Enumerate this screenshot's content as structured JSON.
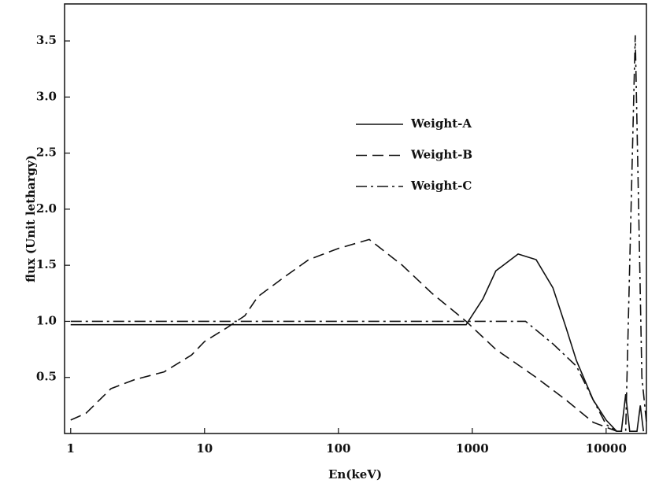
{
  "chart_data": {
    "type": "line",
    "xlabel": "En(keV)",
    "ylabel": "flux (Unit lethargy)",
    "xscale": "log",
    "xlim": [
      0.9,
      20000
    ],
    "ylim": [
      0,
      3.83
    ],
    "xticks": [
      1,
      10,
      100,
      1000,
      10000
    ],
    "yticks": [
      0.5,
      {
        "value": 1,
        "label": "1.0"
      },
      1.5,
      {
        "value": 2,
        "label": "2.0"
      },
      2.5,
      {
        "value": 3,
        "label": "3.0"
      },
      3.5
    ],
    "grid": false,
    "legend": "upper center",
    "series": [
      {
        "name": "Weight-A",
        "color": "#111111",
        "style": "solid",
        "x": [
          1,
          900,
          1200,
          1500,
          2200,
          3000,
          4000,
          5000,
          6000,
          8000,
          10000,
          12000,
          13000,
          14000,
          15000,
          17000,
          18000,
          19000
        ],
        "values": [
          0.97,
          0.97,
          1.2,
          1.45,
          1.6,
          1.55,
          1.3,
          0.95,
          0.65,
          0.3,
          0.12,
          0.02,
          0.02,
          0.35,
          0.02,
          0.02,
          0.25,
          0.02
        ]
      },
      {
        "name": "Weight-B",
        "color": "#111111",
        "style": "dashed",
        "x": [
          1,
          1.3,
          2,
          3,
          5,
          8,
          10,
          15,
          20,
          25,
          40,
          60,
          100,
          170,
          300,
          500,
          900,
          1500,
          3000,
          5000,
          8000,
          12000
        ],
        "values": [
          0.12,
          0.18,
          0.4,
          0.48,
          0.55,
          0.7,
          0.82,
          0.95,
          1.05,
          1.22,
          1.4,
          1.55,
          1.65,
          1.73,
          1.5,
          1.25,
          1.0,
          0.75,
          0.5,
          0.3,
          0.1,
          0.02
        ]
      },
      {
        "name": "Weight-C",
        "color": "#111111",
        "style": "dashdot",
        "x": [
          1,
          2500,
          4000,
          6000,
          8000,
          10000,
          12000,
          14000,
          16500,
          17500,
          18500,
          20000
        ],
        "values": [
          1.0,
          1.0,
          0.8,
          0.6,
          0.3,
          0.08,
          0.02,
          0.02,
          3.55,
          2.0,
          0.5,
          0.1
        ]
      }
    ]
  }
}
